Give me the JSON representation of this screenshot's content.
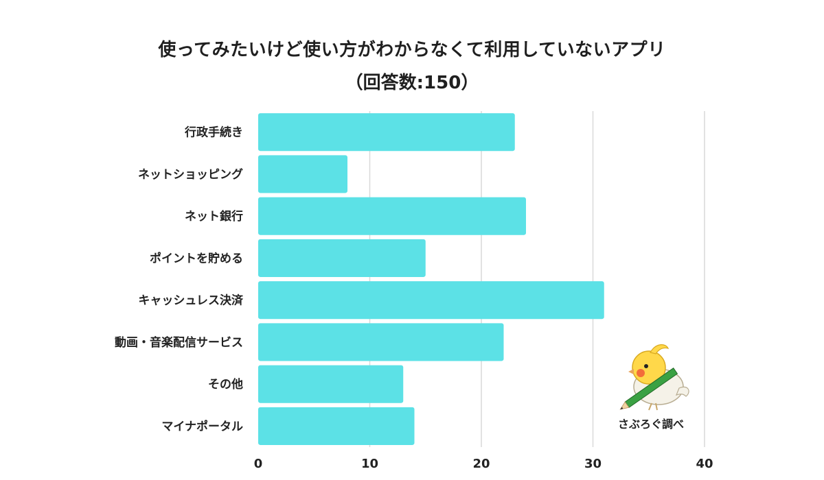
{
  "chart_data": {
    "type": "bar",
    "orientation": "horizontal",
    "title": "使ってみたいけど使い方がわからなくて利用していないアプリ",
    "subtitle": "（回答数:150）",
    "categories": [
      "行政手続き",
      "ネットショッピング",
      "ネット銀行",
      "ポイントを貯める",
      "キャッシュレス決済",
      "動画・音楽配信サービス",
      "その他",
      "マイナポータル"
    ],
    "values": [
      23,
      8,
      24,
      15,
      31,
      22,
      13,
      14
    ],
    "xlim": [
      0,
      40
    ],
    "xticks": [
      "0",
      "10",
      "20",
      "30",
      "40"
    ],
    "grid": true,
    "bar_color": "#5ce1e6",
    "grid_color": "#d9d9d9"
  },
  "credit": {
    "text": "さぶろぐ調べ",
    "icon": "bird-with-pencil-icon"
  }
}
